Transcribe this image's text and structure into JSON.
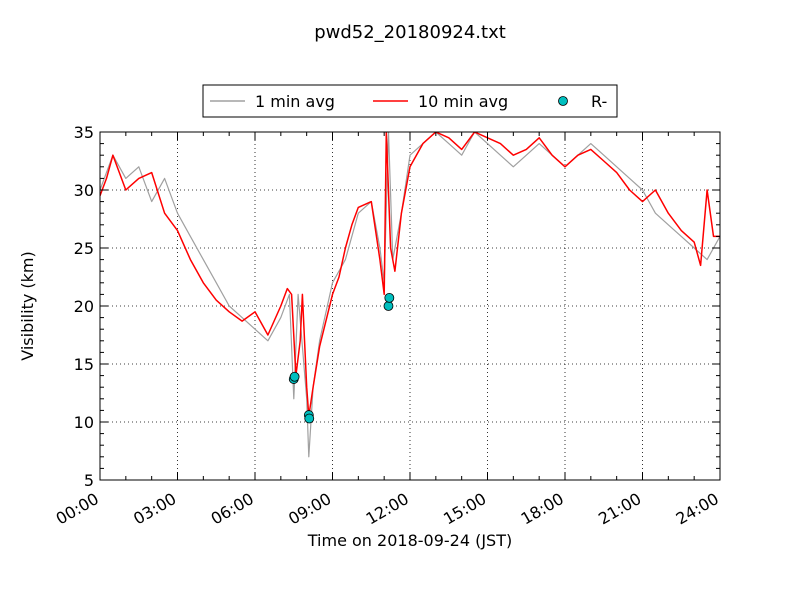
{
  "chart_data": {
    "type": "line",
    "title": "pwd52_20180924.txt",
    "xlabel": "Time on 2018-09-24 (JST)",
    "ylabel": "Visibility (km)",
    "xlim": [
      "00:00",
      "24:00"
    ],
    "ylim": [
      5,
      35
    ],
    "x_ticks": [
      "00:00",
      "03:00",
      "06:00",
      "09:00",
      "12:00",
      "15:00",
      "18:00",
      "21:00",
      "24:00"
    ],
    "y_ticks": [
      5,
      10,
      15,
      20,
      25,
      30,
      35
    ],
    "grid": true,
    "legend_position": "top-center",
    "series": [
      {
        "name": "1 min avg",
        "color": "#a0a0a0",
        "style": "line",
        "x": [
          "00:00",
          "00:30",
          "01:00",
          "01:30",
          "02:00",
          "02:30",
          "03:00",
          "03:30",
          "04:00",
          "04:30",
          "05:00",
          "05:30",
          "06:00",
          "06:30",
          "07:00",
          "07:20",
          "07:30",
          "07:40",
          "08:00",
          "08:05",
          "08:15",
          "08:30",
          "09:00",
          "09:30",
          "10:00",
          "10:30",
          "10:50",
          "11:00",
          "11:10",
          "11:20",
          "11:40",
          "12:00",
          "12:30",
          "13:00",
          "13:30",
          "14:00",
          "14:30",
          "15:00",
          "15:30",
          "16:00",
          "16:30",
          "17:00",
          "17:30",
          "18:00",
          "18:30",
          "19:00",
          "19:30",
          "20:00",
          "20:30",
          "21:00",
          "21:30",
          "22:00",
          "22:30",
          "23:00",
          "23:30",
          "24:00"
        ],
        "y": [
          30,
          33,
          31,
          32,
          29,
          31,
          28,
          26,
          24,
          22,
          20,
          19,
          18,
          17,
          19,
          21,
          12,
          21,
          12,
          7,
          13,
          17,
          22,
          24,
          28,
          29,
          25,
          22,
          35,
          24,
          28,
          33,
          34,
          35,
          34,
          33,
          35,
          34,
          33,
          32,
          33,
          34,
          33,
          32,
          33,
          34,
          33,
          32,
          31,
          30,
          28,
          27,
          26,
          25,
          24,
          26
        ]
      },
      {
        "name": "10 min avg",
        "color": "#ff0000",
        "style": "line",
        "x": [
          "00:00",
          "00:15",
          "00:30",
          "01:00",
          "01:30",
          "02:00",
          "02:30",
          "03:00",
          "03:30",
          "04:00",
          "04:30",
          "05:00",
          "05:30",
          "06:00",
          "06:30",
          "07:00",
          "07:15",
          "07:25",
          "07:35",
          "07:45",
          "07:50",
          "08:00",
          "08:05",
          "08:15",
          "08:30",
          "09:00",
          "09:15",
          "09:30",
          "09:45",
          "10:00",
          "10:30",
          "10:50",
          "11:00",
          "11:05",
          "11:15",
          "11:25",
          "11:40",
          "12:00",
          "12:30",
          "13:00",
          "13:30",
          "14:00",
          "14:30",
          "15:00",
          "15:30",
          "16:00",
          "16:30",
          "17:00",
          "17:30",
          "18:00",
          "18:30",
          "19:00",
          "19:30",
          "20:00",
          "20:30",
          "21:00",
          "21:30",
          "22:00",
          "22:30",
          "23:00",
          "23:15",
          "23:30",
          "23:45",
          "24:00"
        ],
        "y": [
          29.5,
          31,
          33,
          30,
          31,
          31.5,
          28,
          26.5,
          24,
          22,
          20.5,
          19.5,
          18.7,
          19.5,
          17.5,
          20,
          21.5,
          21,
          14,
          17,
          21,
          13,
          10.5,
          13,
          16.5,
          21,
          22.5,
          25,
          27,
          28.5,
          29,
          24,
          21,
          35,
          25,
          23,
          28,
          32,
          34,
          35,
          34.5,
          33.5,
          35,
          34.5,
          34,
          33,
          33.5,
          34.5,
          33,
          32,
          33,
          33.5,
          32.5,
          31.5,
          30,
          29,
          30,
          28,
          26.5,
          25.5,
          23.5,
          30,
          26,
          26
        ]
      },
      {
        "name": "R-",
        "color": "#00bfbf",
        "style": "marker",
        "x": [
          "07:30",
          "07:32",
          "08:05",
          "08:06",
          "11:10",
          "11:12"
        ],
        "y": [
          13.7,
          13.9,
          10.6,
          10.3,
          20.0,
          20.7
        ]
      }
    ]
  }
}
